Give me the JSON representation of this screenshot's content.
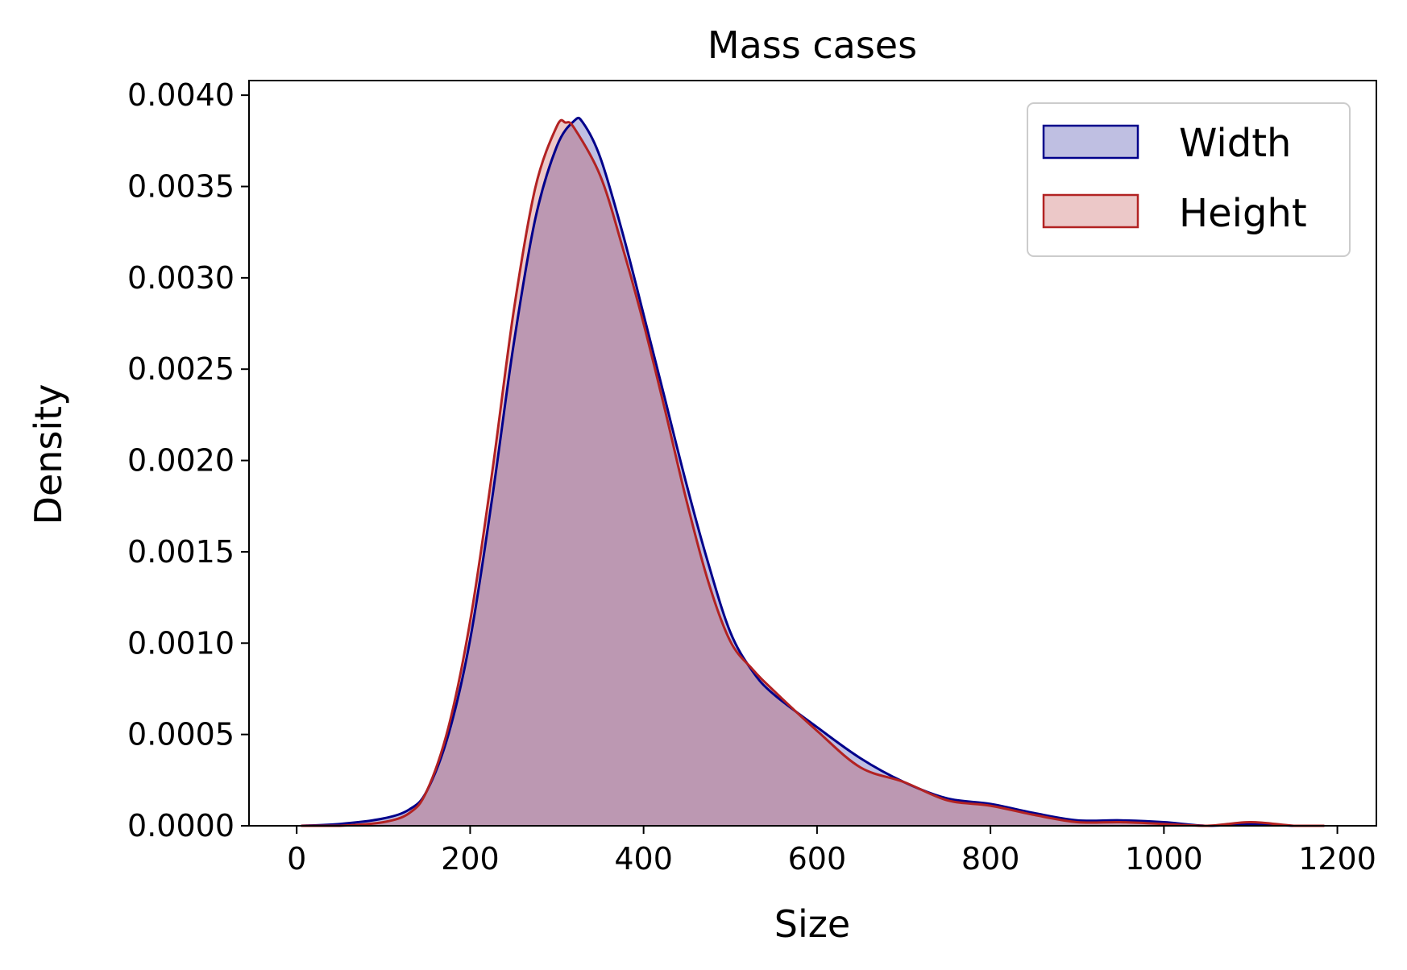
{
  "chart_data": {
    "type": "area",
    "title": "Mass cases",
    "xlabel": "Size",
    "ylabel": "Density",
    "xlim": [
      -55,
      1245
    ],
    "ylim": [
      0,
      0.00408
    ],
    "xticks": [
      "0",
      "200",
      "400",
      "600",
      "800",
      "1000",
      "1200"
    ],
    "xtick_values": [
      0,
      200,
      400,
      600,
      800,
      1000,
      1200
    ],
    "yticks": [
      "0.0000",
      "0.0005",
      "0.0010",
      "0.0015",
      "0.0020",
      "0.0025",
      "0.0030",
      "0.0035",
      "0.0040"
    ],
    "ytick_values": [
      0,
      0.0005,
      0.001,
      0.0015,
      0.002,
      0.0025,
      0.003,
      0.0035,
      0.004
    ],
    "grid": false,
    "legend_position": "top-right",
    "series": [
      {
        "name": "Width",
        "line_color": "#00008b",
        "fill_color": "#00008b",
        "fill_opacity": 0.25,
        "x": [
          5,
          50,
          100,
          130,
          150,
          175,
          200,
          225,
          250,
          275,
          300,
          320,
          330,
          350,
          375,
          400,
          425,
          450,
          475,
          500,
          525,
          550,
          600,
          650,
          700,
          750,
          800,
          850,
          900,
          950,
          1000,
          1050,
          1100,
          1150,
          1185
        ],
        "y": [
          0.0,
          1e-05,
          4e-05,
          9e-05,
          0.00019,
          0.0005,
          0.00102,
          0.00178,
          0.00263,
          0.00332,
          0.00372,
          0.00386,
          0.00385,
          0.00366,
          0.00326,
          0.0028,
          0.00233,
          0.00186,
          0.00143,
          0.00106,
          0.00085,
          0.00072,
          0.00054,
          0.00037,
          0.00024,
          0.00015,
          0.00012,
          7e-05,
          3e-05,
          3e-05,
          2e-05,
          0.0,
          1e-05,
          0.0,
          0.0
        ]
      },
      {
        "name": "Height",
        "line_color": "#b22222",
        "fill_color": "#b22222",
        "fill_opacity": 0.25,
        "x": [
          5,
          50,
          100,
          130,
          150,
          175,
          200,
          225,
          250,
          275,
          300,
          310,
          320,
          350,
          375,
          400,
          425,
          450,
          475,
          500,
          525,
          550,
          600,
          650,
          700,
          750,
          800,
          850,
          900,
          950,
          1000,
          1050,
          1100,
          1150,
          1185
        ],
        "y": [
          0.0,
          0.0,
          2e-05,
          7e-05,
          0.00019,
          0.00054,
          0.00112,
          0.00192,
          0.00281,
          0.00349,
          0.00383,
          0.00385,
          0.00382,
          0.00356,
          0.00318,
          0.00275,
          0.00227,
          0.00177,
          0.00133,
          0.00101,
          0.00086,
          0.00074,
          0.00052,
          0.00032,
          0.00024,
          0.00014,
          0.00011,
          6e-05,
          2e-05,
          2e-05,
          1e-05,
          0.0,
          2e-05,
          0.0,
          0.0
        ]
      }
    ]
  }
}
